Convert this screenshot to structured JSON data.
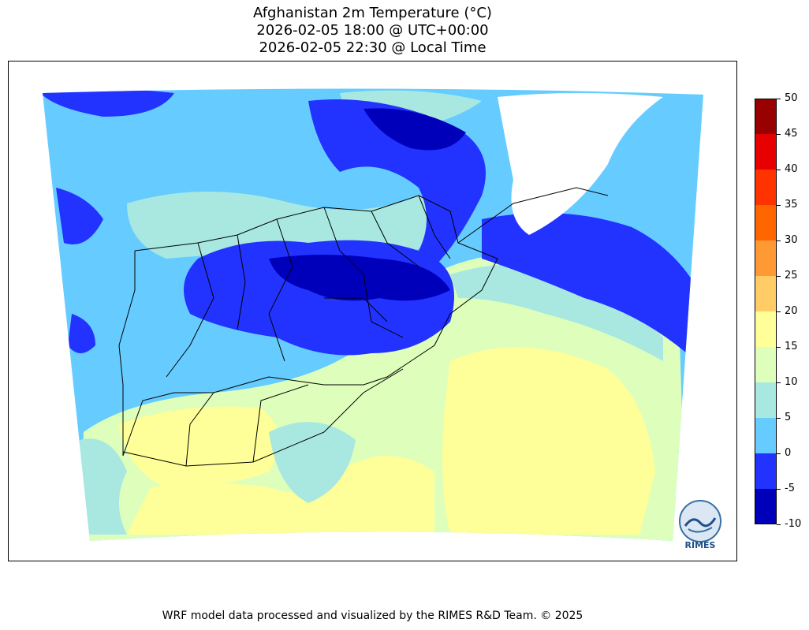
{
  "title": {
    "line1": "Afghanistan 2m Temperature (°C)",
    "line2": "2026-02-05 18:00 @ UTC+00:00",
    "line3": "2026-02-05 22:30 @ Local Time"
  },
  "colorbar": {
    "ticks": [
      "50",
      "45",
      "40",
      "35",
      "30",
      "25",
      "20",
      "15",
      "10",
      "5",
      "0",
      "-5",
      "-10"
    ],
    "bands": [
      {
        "range": "45–50",
        "color": "#990000"
      },
      {
        "range": "40–45",
        "color": "#e60000"
      },
      {
        "range": "35–40",
        "color": "#ff3300"
      },
      {
        "range": "30–35",
        "color": "#ff6600"
      },
      {
        "range": "25–30",
        "color": "#ff9933"
      },
      {
        "range": "20–25",
        "color": "#ffcc66"
      },
      {
        "range": "15–20",
        "color": "#ffff99"
      },
      {
        "range": "10–15",
        "color": "#ddffbb"
      },
      {
        "range": "5–10",
        "color": "#a8e8e0"
      },
      {
        "range": "0–5",
        "color": "#66ccff"
      },
      {
        "range": "-5–0",
        "color": "#2233ff"
      },
      {
        "range": "-10–-5",
        "color": "#0000bb"
      }
    ]
  },
  "logo": {
    "text": "RIMES"
  },
  "footer": "WRF model data processed and visualized by the RIMES R&D Team. © 2025"
}
